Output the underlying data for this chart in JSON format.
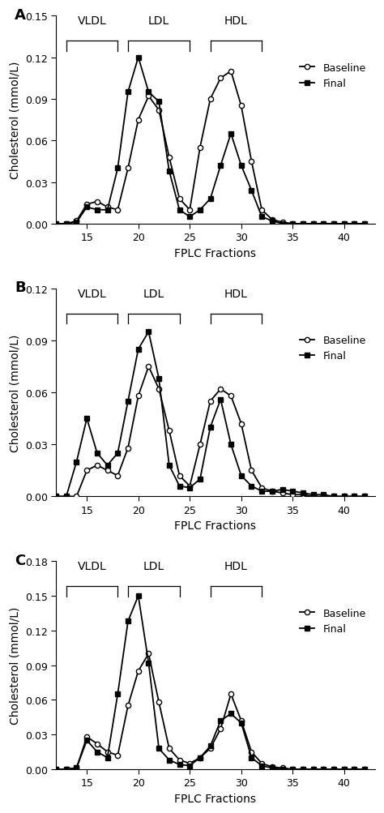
{
  "panels": [
    {
      "label": "A",
      "ylim": [
        0,
        0.15
      ],
      "yticks": [
        0,
        0.03,
        0.06,
        0.09,
        0.12,
        0.15
      ],
      "baseline_x": [
        12,
        13,
        14,
        15,
        16,
        17,
        18,
        19,
        20,
        21,
        22,
        23,
        24,
        25,
        26,
        27,
        28,
        29,
        30,
        31,
        32,
        33,
        34,
        35,
        36,
        37,
        38,
        39,
        40,
        41,
        42
      ],
      "baseline_y": [
        0,
        0,
        0.002,
        0.014,
        0.016,
        0.012,
        0.01,
        0.04,
        0.075,
        0.092,
        0.082,
        0.048,
        0.018,
        0.01,
        0.055,
        0.09,
        0.105,
        0.11,
        0.085,
        0.045,
        0.01,
        0.003,
        0.001,
        0,
        0,
        0,
        0,
        0,
        0,
        0,
        0
      ],
      "final_x": [
        12,
        13,
        14,
        15,
        16,
        17,
        18,
        19,
        20,
        21,
        22,
        23,
        24,
        25,
        26,
        27,
        28,
        29,
        30,
        31,
        32,
        33,
        34,
        35,
        36,
        37,
        38,
        39,
        40,
        41,
        42
      ],
      "final_y": [
        0,
        0,
        0.001,
        0.012,
        0.01,
        0.01,
        0.04,
        0.095,
        0.12,
        0.095,
        0.088,
        0.038,
        0.01,
        0.005,
        0.01,
        0.018,
        0.042,
        0.065,
        0.042,
        0.024,
        0.005,
        0.002,
        0,
        0,
        0,
        0,
        0,
        0,
        0,
        0,
        0
      ],
      "bracket_vldl": [
        13,
        18
      ],
      "bracket_ldl": [
        19,
        25
      ],
      "bracket_hdl": [
        27,
        32
      ]
    },
    {
      "label": "B",
      "ylim": [
        0,
        0.12
      ],
      "yticks": [
        0,
        0.03,
        0.06,
        0.09,
        0.12
      ],
      "baseline_x": [
        12,
        13,
        14,
        15,
        16,
        17,
        18,
        19,
        20,
        21,
        22,
        23,
        24,
        25,
        26,
        27,
        28,
        29,
        30,
        31,
        32,
        33,
        34,
        35,
        36,
        37,
        38,
        39,
        40,
        41,
        42
      ],
      "baseline_y": [
        0,
        0,
        0,
        0.015,
        0.018,
        0.015,
        0.012,
        0.028,
        0.058,
        0.075,
        0.062,
        0.038,
        0.012,
        0.006,
        0.03,
        0.055,
        0.062,
        0.058,
        0.042,
        0.015,
        0.005,
        0.003,
        0.002,
        0.001,
        0.001,
        0,
        0,
        0,
        0,
        0,
        0
      ],
      "final_x": [
        12,
        13,
        14,
        15,
        16,
        17,
        18,
        19,
        20,
        21,
        22,
        23,
        24,
        25,
        26,
        27,
        28,
        29,
        30,
        31,
        32,
        33,
        34,
        35,
        36,
        37,
        38,
        39,
        40,
        41,
        42
      ],
      "final_y": [
        0,
        0,
        0.02,
        0.045,
        0.025,
        0.018,
        0.025,
        0.055,
        0.085,
        0.095,
        0.068,
        0.018,
        0.006,
        0.005,
        0.01,
        0.04,
        0.056,
        0.03,
        0.012,
        0.006,
        0.003,
        0.003,
        0.004,
        0.003,
        0.002,
        0.001,
        0.001,
        0,
        0,
        0,
        0
      ],
      "bracket_vldl": [
        13,
        18
      ],
      "bracket_ldl": [
        19,
        24
      ],
      "bracket_hdl": [
        27,
        32
      ]
    },
    {
      "label": "C",
      "ylim": [
        0,
        0.18
      ],
      "yticks": [
        0,
        0.03,
        0.06,
        0.09,
        0.12,
        0.15,
        0.18
      ],
      "baseline_x": [
        12,
        13,
        14,
        15,
        16,
        17,
        18,
        19,
        20,
        21,
        22,
        23,
        24,
        25,
        26,
        27,
        28,
        29,
        30,
        31,
        32,
        33,
        34,
        35,
        36,
        37,
        38,
        39,
        40,
        41,
        42
      ],
      "baseline_y": [
        0,
        0,
        0.001,
        0.028,
        0.022,
        0.015,
        0.012,
        0.055,
        0.085,
        0.1,
        0.058,
        0.018,
        0.008,
        0.005,
        0.01,
        0.018,
        0.035,
        0.065,
        0.042,
        0.015,
        0.005,
        0.002,
        0.001,
        0,
        0,
        0,
        0,
        0,
        0,
        0,
        0
      ],
      "final_x": [
        12,
        13,
        14,
        15,
        16,
        17,
        18,
        19,
        20,
        21,
        22,
        23,
        24,
        25,
        26,
        27,
        28,
        29,
        30,
        31,
        32,
        33,
        34,
        35,
        36,
        37,
        38,
        39,
        40,
        41,
        42
      ],
      "final_y": [
        0,
        0,
        0.001,
        0.025,
        0.015,
        0.01,
        0.065,
        0.128,
        0.15,
        0.092,
        0.018,
        0.008,
        0.004,
        0.003,
        0.01,
        0.02,
        0.042,
        0.048,
        0.04,
        0.01,
        0.003,
        0.001,
        0,
        0,
        0,
        0,
        0,
        0,
        0,
        0,
        0
      ],
      "bracket_vldl": [
        13,
        18
      ],
      "bracket_ldl": [
        19,
        24
      ],
      "bracket_hdl": [
        27,
        32
      ]
    }
  ],
  "xlabel": "FPLC Fractions",
  "ylabel": "Cholesterol (mmol/L)",
  "xticks": [
    15,
    20,
    25,
    30,
    35,
    40
  ],
  "xlim": [
    12,
    43
  ],
  "line_color": "#000000",
  "baseline_marker": "o",
  "final_marker": "s",
  "marker_size": 4.5,
  "linewidth": 1.3,
  "legend_baseline": "Baseline",
  "legend_final": "Final",
  "tick_fontsize": 9,
  "axis_label_fontsize": 10,
  "bracket_label_fontsize": 10
}
